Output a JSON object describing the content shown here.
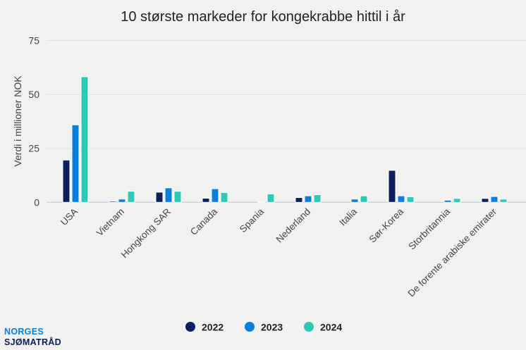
{
  "chart_data": {
    "type": "bar",
    "title": "10 største markeder for kongekrabbe hittil i år",
    "xlabel": "",
    "ylabel": "Verdi i millioner NOK",
    "ylim": [
      0,
      75
    ],
    "yticks": [
      0,
      25,
      50,
      75
    ],
    "grid": true,
    "legend_position": "bottom",
    "categories": [
      "USA",
      "Vietnam",
      "Hongkong SAR",
      "Canada",
      "Spania",
      "Nederland",
      "Italia",
      "Sør-Korea",
      "Storbritannia",
      "De forente arabiske emirater"
    ],
    "series": [
      {
        "name": "2022",
        "color": "#0d1f5c",
        "values": [
          19.6,
          0.5,
          4.7,
          1.9,
          0,
          2.2,
          0,
          14.8,
          0,
          1.8
        ]
      },
      {
        "name": "2023",
        "color": "#0a7fe0",
        "values": [
          35.9,
          1.5,
          6.7,
          6.3,
          0.1,
          3.0,
          1.5,
          3.0,
          1.0,
          2.7
        ]
      },
      {
        "name": "2024",
        "color": "#2ec8b5",
        "values": [
          58.2,
          5.1,
          5.1,
          4.5,
          3.9,
          3.5,
          3.0,
          2.6,
          1.8,
          1.5
        ]
      }
    ]
  },
  "logo": {
    "line1": "NORGES",
    "line2": "SJØMATRÅD"
  }
}
